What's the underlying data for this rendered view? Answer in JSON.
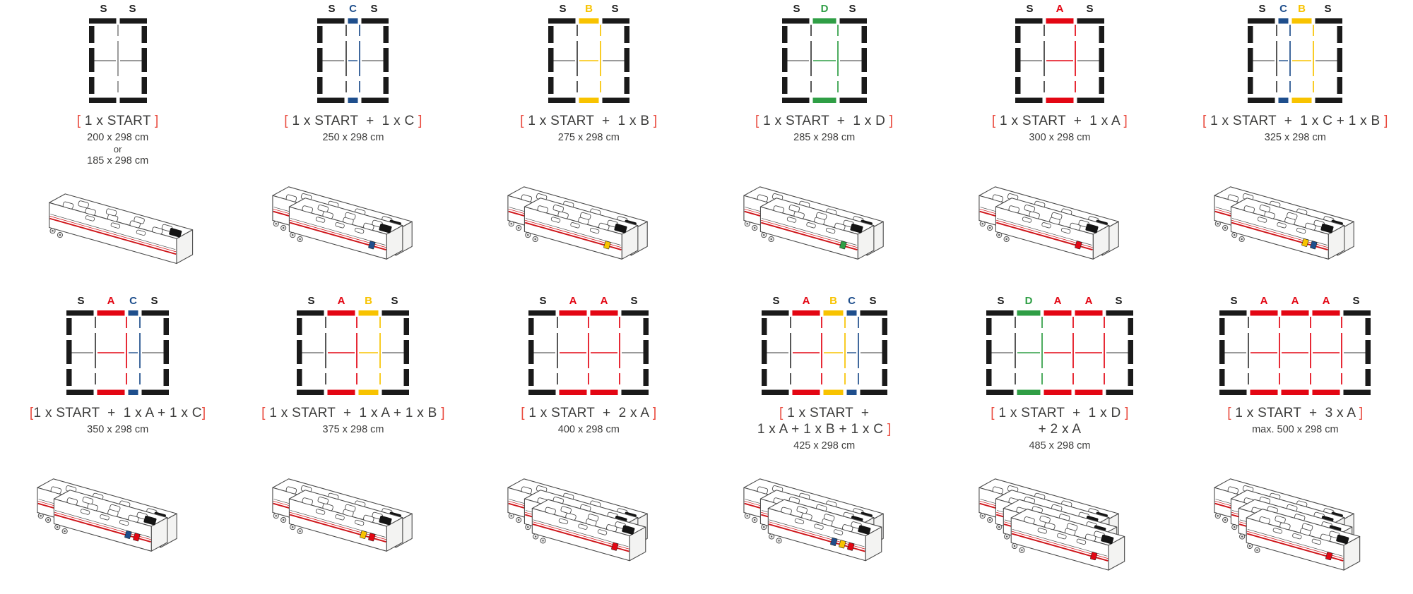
{
  "module_colors": {
    "S": "#1a1a1a",
    "A": "#e30613",
    "B": "#f8c300",
    "C": "#1e4e8c",
    "D": "#2f9e45"
  },
  "schematic_colors": {
    "gray_thin_line": "#787878",
    "dark_boundary_line": "#3a3a3a",
    "start_split_line": "#8a8a8a"
  },
  "text_colors": {
    "label_gray": "#3d3d3c",
    "bracket_red": "#e9493d"
  },
  "case_colors": {
    "outline": "#4a4a4a",
    "stripe_red": "#cf1318",
    "patch_black": "#141414"
  },
  "rows": [
    {
      "configs": [
        {
          "columns": [
            "S",
            "S"
          ],
          "label_lines": [
            "[ 1 x START ]"
          ],
          "dim_lines": [
            "200 x 298 cm",
            "or",
            "185 x 298 cm"
          ],
          "cases": 1,
          "clips": []
        },
        {
          "columns": [
            "S",
            "C",
            "S"
          ],
          "label_lines": [
            "[ 1 x START  +  1 x C ]"
          ],
          "dim_lines": [
            "250 x 298 cm"
          ],
          "cases": 2,
          "clips": [
            "C"
          ]
        },
        {
          "columns": [
            "S",
            "B",
            "S"
          ],
          "label_lines": [
            "[ 1 x START  +  1 x B ]"
          ],
          "dim_lines": [
            "275 x 298 cm"
          ],
          "cases": 2,
          "clips": [
            "B"
          ]
        },
        {
          "columns": [
            "S",
            "D",
            "S"
          ],
          "label_lines": [
            "[ 1 x START  +  1 x D ]"
          ],
          "dim_lines": [
            "285 x 298 cm"
          ],
          "cases": 2,
          "clips": [
            "D"
          ]
        },
        {
          "columns": [
            "S",
            "A",
            "S"
          ],
          "label_lines": [
            "[ 1 x START  +  1 x A ]"
          ],
          "dim_lines": [
            "300 x 298 cm"
          ],
          "cases": 2,
          "clips": [
            "A"
          ]
        },
        {
          "columns": [
            "S",
            "C",
            "B",
            "S"
          ],
          "label_lines": [
            "[ 1 x START  +  1 x C + 1 x B ]"
          ],
          "dim_lines": [
            "325 x 298 cm"
          ],
          "cases": 2,
          "clips": [
            "C",
            "B"
          ]
        }
      ]
    },
    {
      "configs": [
        {
          "columns": [
            "S",
            "A",
            "C",
            "S"
          ],
          "label_lines": [
            "[1 x START  +  1 x A + 1 x C]"
          ],
          "dim_lines": [
            "350 x 298 cm"
          ],
          "cases": 2,
          "clips": [
            "A",
            "C"
          ]
        },
        {
          "columns": [
            "S",
            "A",
            "B",
            "S"
          ],
          "label_lines": [
            "[ 1 x START  +  1 x A + 1 x B ]"
          ],
          "dim_lines": [
            "375 x 298 cm"
          ],
          "cases": 2,
          "clips": [
            "A",
            "B"
          ]
        },
        {
          "columns": [
            "S",
            "A",
            "A",
            "S"
          ],
          "label_lines": [
            "[ 1 x START  +  2 x A ]"
          ],
          "dim_lines": [
            "400 x 298 cm"
          ],
          "cases": 3,
          "clips": [
            "A",
            "A"
          ]
        },
        {
          "columns": [
            "S",
            "A",
            "B",
            "C",
            "S"
          ],
          "label_lines": [
            "[ 1 x START  +",
            "1 x A + 1 x B + 1 x C ]"
          ],
          "dim_lines": [
            "425 x 298 cm"
          ],
          "cases": 3,
          "clips": [
            "A",
            "B",
            "C"
          ]
        },
        {
          "columns": [
            "S",
            "D",
            "A",
            "A",
            "S"
          ],
          "label_lines": [
            "[ 1 x START  +  1 x D ]",
            "+ 2 x A"
          ],
          "dim_lines": [
            "485 x 298 cm"
          ],
          "cases": 4,
          "clips": [
            "D",
            "A",
            "A"
          ]
        },
        {
          "columns": [
            "S",
            "A",
            "A",
            "A",
            "S"
          ],
          "label_lines": [
            "[ 1 x START  +  3 x A ]"
          ],
          "dim_lines": [
            "max. 500 x 298 cm"
          ],
          "cases": 4,
          "clips": [
            "A",
            "A",
            "A"
          ]
        }
      ]
    }
  ]
}
